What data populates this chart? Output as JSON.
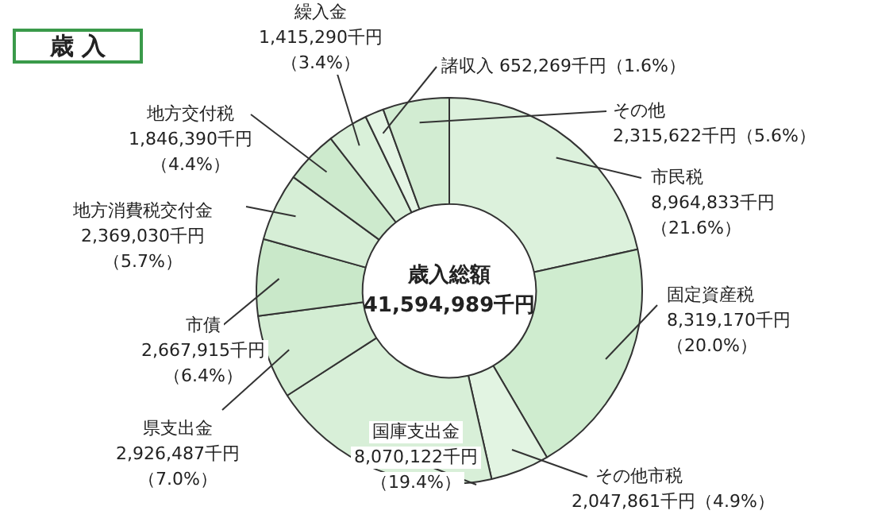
{
  "chart_data": {
    "type": "donut",
    "title": "歳 入",
    "categories": [
      "市民税",
      "固定資産税",
      "その他市税",
      "国庫支出金",
      "県支出金",
      "市債",
      "地方消費税交付金",
      "地方交付税",
      "繰入金",
      "諸収入",
      "その他"
    ],
    "values": [
      8964833,
      8319170,
      2047861,
      8070122,
      2926487,
      2667915,
      2369030,
      1846390,
      1415290,
      652269,
      2315622
    ],
    "value_labels": [
      "8,964,833千円（21.6%）",
      "8,319,170千円（20.0%）",
      "2,047,861千円（4.9%）",
      "8,070,122千円（19.4%）",
      "2,926,487千円（7.0%）",
      "2,667,915千円（6.4%）",
      "2,369,030千円（5.7%）",
      "1,846,390千円（4.4%）",
      "1,415,290千円（3.4%）",
      "652,269千円（1.6%）",
      "2,315,622千円（5.6%）"
    ],
    "colors": [
      "#dcf1dc",
      "#cfeccf",
      "#e2f4e2",
      "#d8efd8",
      "#d3edd3",
      "#c9e8c9",
      "#d6eed6",
      "#cdeacd",
      "#d9f0d9",
      "#e4f5e4",
      "#d2ecd2"
    ],
    "annotations": [
      "歳入総額\n41,594,989千円"
    ]
  }
}
